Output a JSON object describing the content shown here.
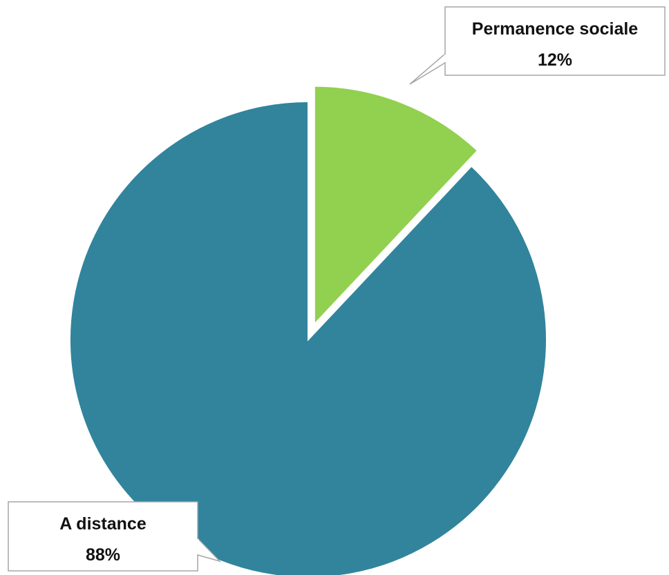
{
  "chart_data": {
    "type": "pie",
    "slices": [
      {
        "label": "Permanence sociale",
        "value": 12,
        "value_label": "12%",
        "color": "#92d050",
        "exploded": true
      },
      {
        "label": "A distance",
        "value": 88,
        "value_label": "88%",
        "color": "#31849b",
        "exploded": false
      }
    ],
    "start_angle": "12 o'clock",
    "direction": "clockwise",
    "legend": "none",
    "data_labels": "callouts"
  }
}
